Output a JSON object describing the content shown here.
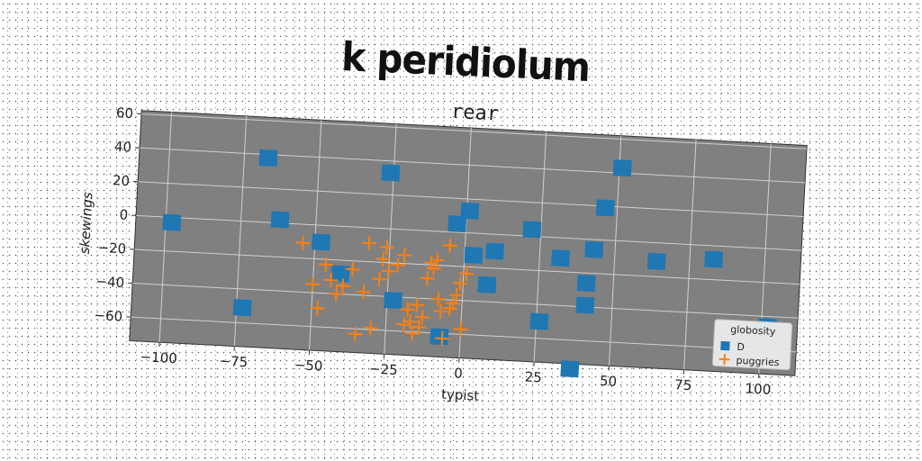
{
  "suptitle": "k peridiolum",
  "chart_data": {
    "type": "scatter",
    "title": "rear",
    "xlabel": "typist",
    "ylabel": "skewings",
    "xlim": [
      -110,
      112
    ],
    "ylim": [
      -74,
      62
    ],
    "xticks": [
      -100,
      -75,
      -50,
      -25,
      0,
      25,
      50,
      75,
      100
    ],
    "yticks": [
      60,
      40,
      20,
      0,
      -20,
      -40,
      -60
    ],
    "grid": true,
    "background": "#808080",
    "legend": {
      "title": "globosity",
      "placement": "lower-right"
    },
    "series": [
      {
        "name": "D",
        "marker": "square",
        "color": "#1f77b4",
        "points": [
          [
            -98,
            -3
          ],
          [
            -67,
            38
          ],
          [
            -62,
            2
          ],
          [
            -48,
            -10
          ],
          [
            -41,
            -28
          ],
          [
            -26,
            33
          ],
          [
            -23,
            -42
          ],
          [
            -7,
            -62
          ],
          [
            -3,
            5
          ],
          [
            1,
            13
          ],
          [
            3,
            -13
          ],
          [
            8,
            -30
          ],
          [
            10,
            -10
          ],
          [
            22,
            4
          ],
          [
            26,
            -50
          ],
          [
            32,
            -12
          ],
          [
            37,
            -77
          ],
          [
            41,
            -26
          ],
          [
            41,
            -39
          ],
          [
            43,
            -6
          ],
          [
            46,
            19
          ],
          [
            51,
            43
          ],
          [
            64,
            -11
          ],
          [
            83,
            -8
          ],
          [
            102,
            -46
          ],
          [
            -73,
            -51
          ]
        ]
      },
      {
        "name": "puggries",
        "marker": "plus",
        "color": "#ff7f0e",
        "points": [
          [
            -54,
            -11
          ],
          [
            -50,
            -35
          ],
          [
            -48,
            -49
          ],
          [
            -46,
            -23
          ],
          [
            -44,
            -32
          ],
          [
            -42,
            -40
          ],
          [
            -40,
            -35
          ],
          [
            -37,
            -25
          ],
          [
            -35,
            -63
          ],
          [
            -33,
            -38
          ],
          [
            -32,
            -9
          ],
          [
            -30,
            -59
          ],
          [
            -28,
            -30
          ],
          [
            -27,
            -18
          ],
          [
            -26,
            -11
          ],
          [
            -25,
            -25
          ],
          [
            -22,
            -21
          ],
          [
            -20,
            -15
          ],
          [
            -19,
            -56
          ],
          [
            -18,
            -47
          ],
          [
            -17,
            -54
          ],
          [
            -16,
            -61
          ],
          [
            -15,
            -44
          ],
          [
            -14,
            -57
          ],
          [
            -13,
            -51
          ],
          [
            -12,
            -28
          ],
          [
            -11,
            -19
          ],
          [
            -10,
            -22
          ],
          [
            -9,
            -17
          ],
          [
            -8,
            -40
          ],
          [
            -7,
            -47
          ],
          [
            -6,
            -63
          ],
          [
            -5,
            -8
          ],
          [
            -4,
            -45
          ],
          [
            -3,
            -42
          ],
          [
            -2,
            -37
          ],
          [
            -1,
            -30
          ],
          [
            0,
            -57
          ],
          [
            1,
            -24
          ]
        ]
      }
    ]
  }
}
